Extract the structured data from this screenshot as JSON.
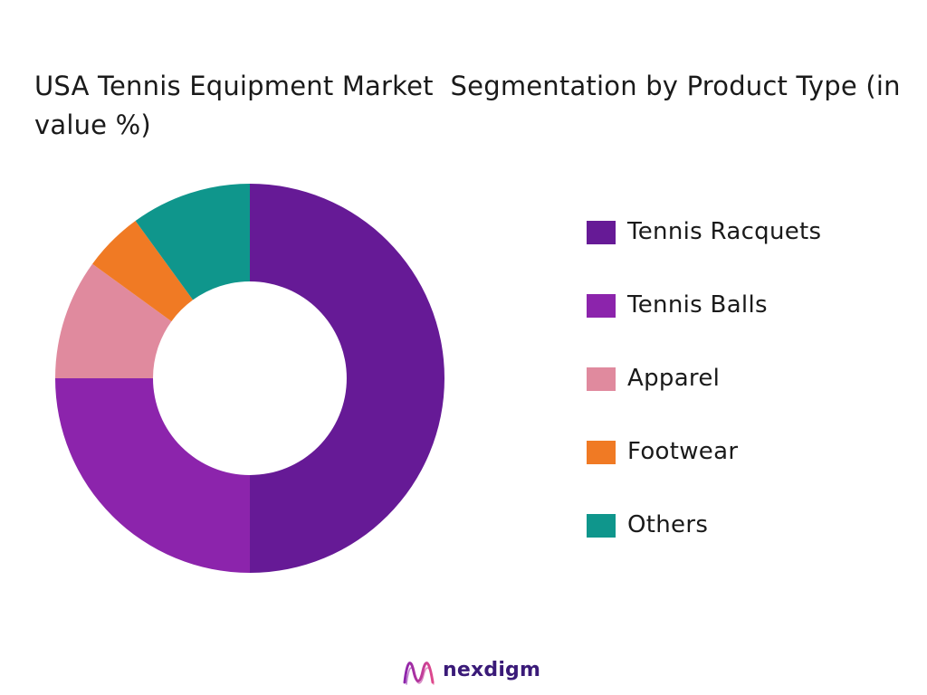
{
  "chart_data": {
    "type": "pie",
    "title": "USA Tennis Equipment Market  Segmentation by Product Type (in value %)",
    "categories": [
      "Tennis Racquets",
      "Tennis Balls",
      "Apparel",
      "Footwear",
      "Others"
    ],
    "values": [
      50,
      25,
      10,
      5,
      10
    ],
    "colors": [
      "#661a96",
      "#8c24ac",
      "#e08a9e",
      "#f07a24",
      "#0f968c"
    ],
    "donut": true,
    "legend_position": "right",
    "start_angle": "top",
    "direction": "clockwise"
  },
  "brand": {
    "name": "nexdigm",
    "logo_icon": "nexdigm-wave-logo",
    "logo_colors": [
      "#8c24ac",
      "#e04a8c"
    ]
  }
}
